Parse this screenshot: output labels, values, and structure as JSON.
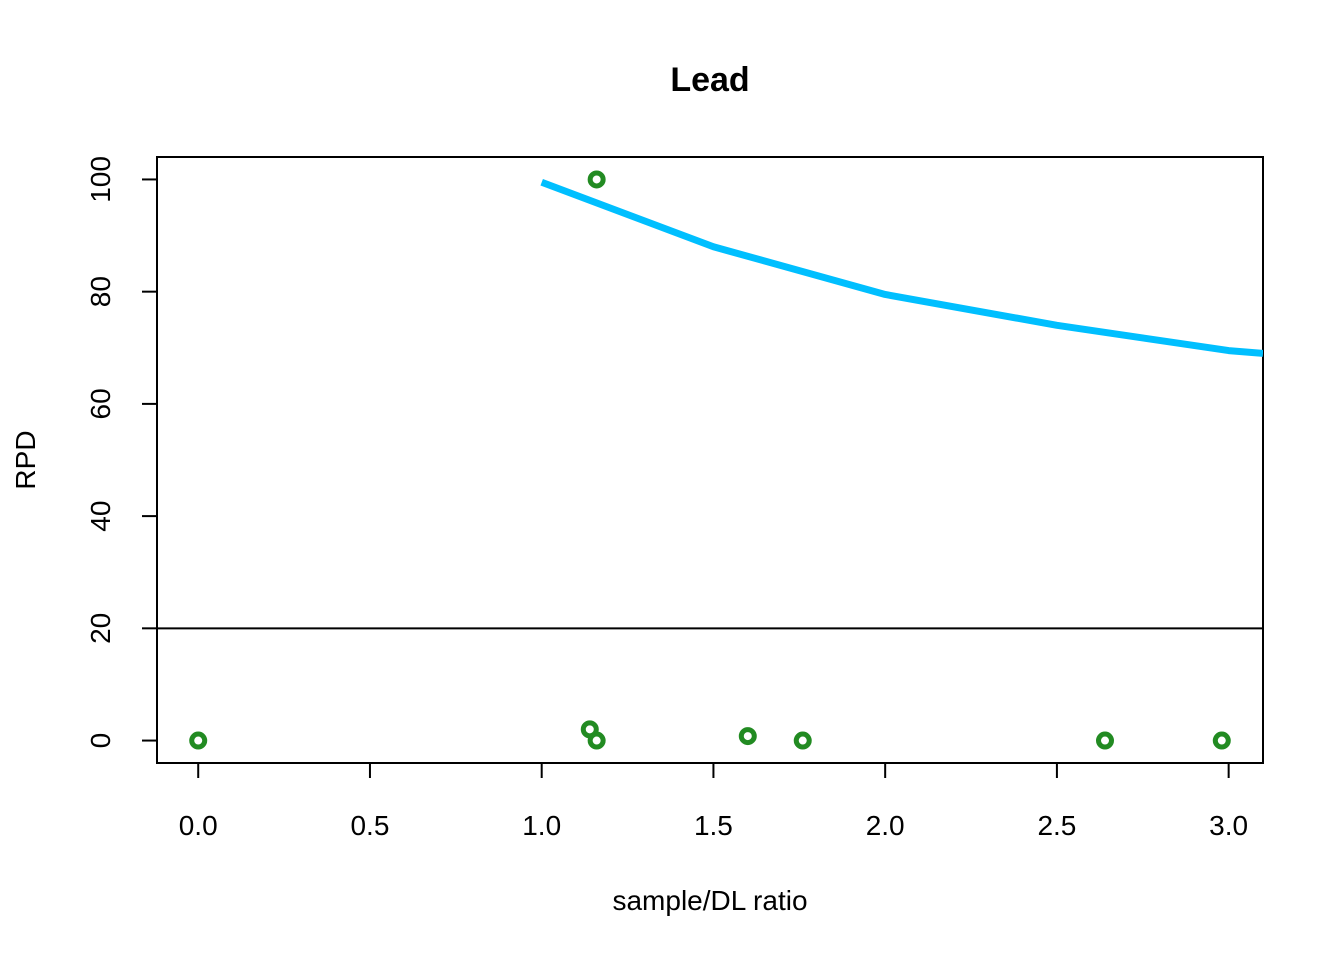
{
  "chart_data": {
    "type": "scatter",
    "title": "Lead",
    "xlabel": "sample/DL ratio",
    "ylabel": "RPD",
    "xlim": [
      -0.12,
      3.1
    ],
    "ylim": [
      -4,
      104
    ],
    "x_ticks": [
      "0.0",
      "0.5",
      "1.0",
      "1.5",
      "2.0",
      "2.5",
      "3.0"
    ],
    "y_ticks": [
      "0",
      "20",
      "40",
      "60",
      "80",
      "100"
    ],
    "grid": false,
    "points": {
      "color": "#228B22",
      "x": [
        0.0,
        1.14,
        1.16,
        1.16,
        1.6,
        1.76,
        2.64,
        2.98
      ],
      "y": [
        0,
        2,
        0,
        100,
        0.8,
        0,
        0,
        0
      ]
    },
    "curve": {
      "color": "#00BFFF",
      "x": [
        1.0,
        1.5,
        2.0,
        2.5,
        3.0,
        3.1
      ],
      "y": [
        99.5,
        88,
        79.5,
        74,
        69.5,
        69
      ]
    },
    "reference_line": {
      "y": 20,
      "color": "#000000"
    }
  }
}
